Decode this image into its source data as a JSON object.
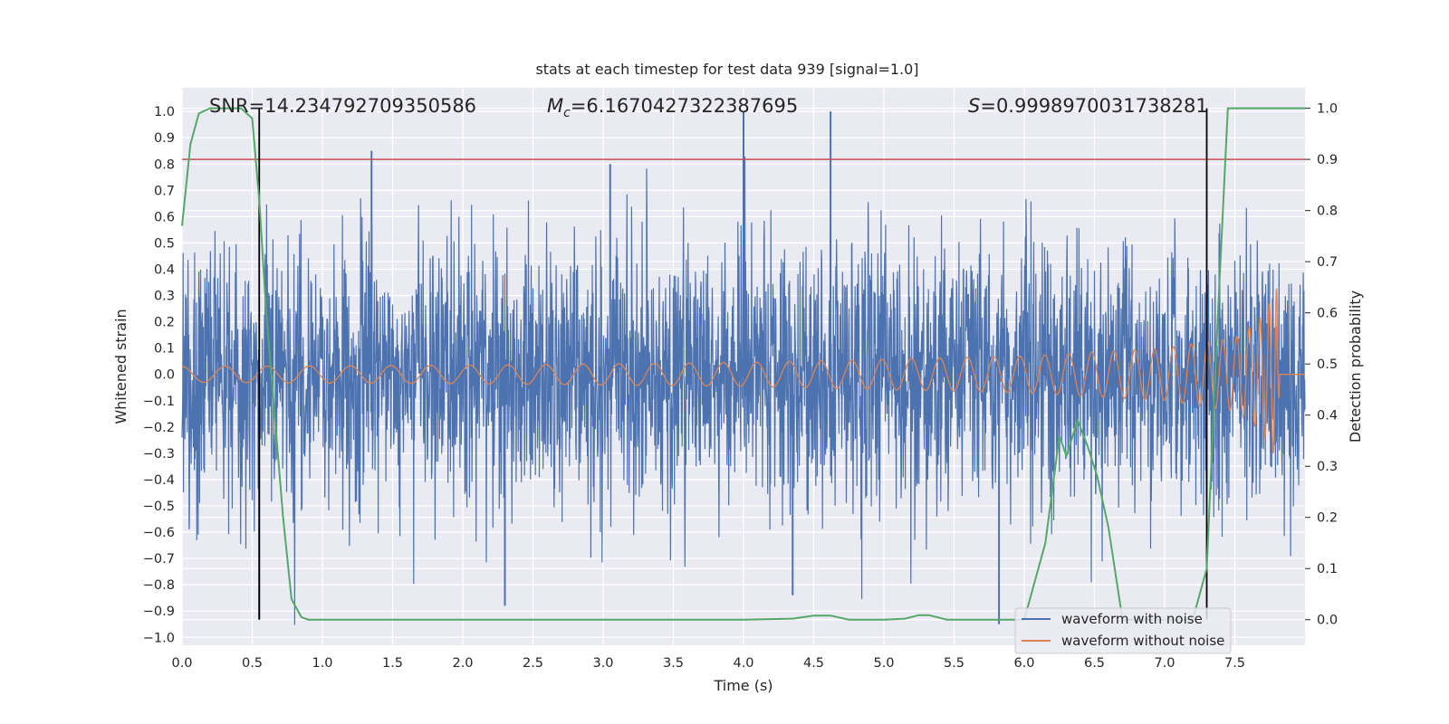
{
  "chart_data": {
    "type": "line",
    "title": "stats at each timestep for test data 939 [signal=1.0]",
    "xlabel": "Time (s)",
    "ylabel_left": "Whitened strain",
    "ylabel_right": "Detection probability",
    "xlim": [
      0.0,
      8.0
    ],
    "ylim_left": [
      -1.03,
      1.09
    ],
    "ylim_right": [
      -0.05,
      1.04
    ],
    "x_ticks": [
      "0.0",
      "0.5",
      "1.0",
      "1.5",
      "2.0",
      "2.5",
      "3.0",
      "3.5",
      "4.0",
      "4.5",
      "5.0",
      "5.5",
      "6.0",
      "6.5",
      "7.0",
      "7.5"
    ],
    "y_ticks_left": [
      "1.0",
      "0.9",
      "0.8",
      "0.7",
      "0.6",
      "0.5",
      "0.4",
      "0.3",
      "0.2",
      "0.1",
      "0.0",
      "−0.1",
      "−0.2",
      "−0.3",
      "−0.4",
      "−0.5",
      "−0.6",
      "−0.7",
      "−0.8",
      "−0.9",
      "−1.0"
    ],
    "y_ticks_right": [
      "1.0",
      "0.9",
      "0.8",
      "0.7",
      "0.6",
      "0.5",
      "0.4",
      "0.3",
      "0.2",
      "0.1",
      "0.0"
    ],
    "stats": {
      "snr_text": "SNR=14.234792709350586",
      "mc_symbol": "M",
      "mc_sub": "c",
      "mc_value": "=6.1670427322387695",
      "s_symbol": "S",
      "s_value": "=0.9998970031738281"
    },
    "threshold": {
      "value": 0.9,
      "axis": "right",
      "color": "#c44e52"
    },
    "vlines": [
      0.55,
      7.3
    ],
    "series": [
      {
        "name": "waveform with noise",
        "color": "#4c72b0",
        "axis": "left",
        "description": "noisy whitened strain, envelope roughly ±0.45 with peaks to ±1.0",
        "notable_peaks": [
          [
            1.35,
            0.85
          ],
          [
            4.0,
            1.0
          ],
          [
            4.62,
            1.0
          ],
          [
            3.05,
            0.8
          ],
          [
            5.82,
            -0.95
          ],
          [
            0.55,
            -0.93
          ],
          [
            2.3,
            -0.88
          ],
          [
            4.35,
            -0.84
          ]
        ]
      },
      {
        "name": "waveform without noise",
        "color": "#dd8452",
        "axis": "left",
        "description": "chirp waveform",
        "amplitude_points": [
          [
            0.0,
            0.03
          ],
          [
            2.0,
            0.035
          ],
          [
            4.0,
            0.045
          ],
          [
            6.0,
            0.07
          ],
          [
            7.0,
            0.1
          ],
          [
            7.5,
            0.14
          ],
          [
            7.7,
            0.22
          ],
          [
            7.8,
            0.33
          ],
          [
            7.82,
            0.0
          ],
          [
            8.0,
            0.0
          ]
        ],
        "merger_time": 7.82
      },
      {
        "name": "detection probability",
        "color": "#55a868",
        "axis": "right",
        "x": [
          0.0,
          0.06,
          0.12,
          0.2,
          0.3,
          0.42,
          0.5,
          0.55,
          0.6,
          0.66,
          0.72,
          0.78,
          0.85,
          0.9,
          1.0,
          2.0,
          3.0,
          4.0,
          4.35,
          4.5,
          4.62,
          4.75,
          5.0,
          5.15,
          5.25,
          5.32,
          5.45,
          6.0,
          6.15,
          6.25,
          6.3,
          6.38,
          6.45,
          6.52,
          6.6,
          6.7,
          7.0,
          7.2,
          7.3,
          7.38,
          7.45,
          8.0
        ],
        "values": [
          0.77,
          0.93,
          0.99,
          1.0,
          1.0,
          1.0,
          0.98,
          0.82,
          0.6,
          0.4,
          0.2,
          0.04,
          0.005,
          0.0,
          0.0,
          0.0,
          0.0,
          0.0,
          0.002,
          0.008,
          0.008,
          0.0,
          0.0,
          0.002,
          0.009,
          0.009,
          0.0,
          0.0,
          0.15,
          0.36,
          0.32,
          0.39,
          0.34,
          0.28,
          0.18,
          0.0,
          0.0,
          0.0,
          0.1,
          0.6,
          1.0,
          1.0
        ]
      }
    ],
    "legend": {
      "placement": "lower-right",
      "items": [
        "waveform with noise",
        "waveform without noise"
      ]
    },
    "grid": true
  }
}
